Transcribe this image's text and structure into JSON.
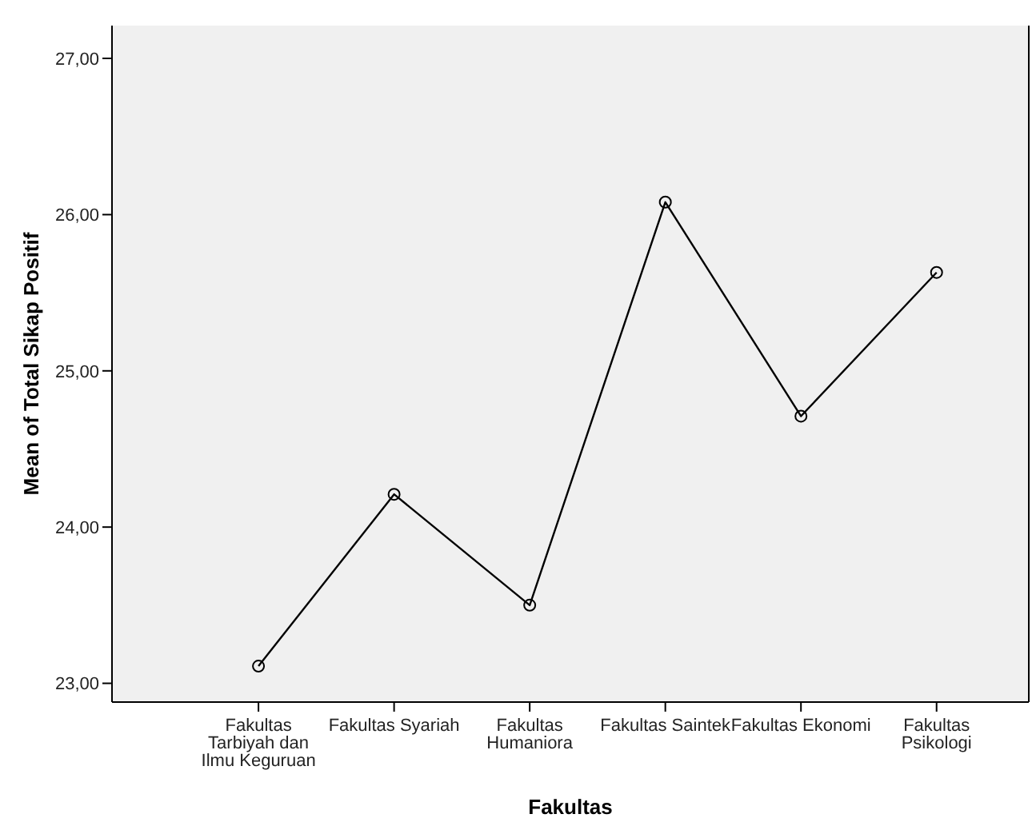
{
  "chart_data": {
    "type": "line",
    "xlabel": "Fakultas",
    "ylabel": "Mean of Total Sikap Positif",
    "categories": [
      "Fakultas Tarbiyah dan Ilmu Keguruan",
      "Fakultas Syariah",
      "Fakultas Humaniora",
      "Fakultas Saintek",
      "Fakultas Ekonomi",
      "Fakultas Psikologi"
    ],
    "series": [
      {
        "color": "#000000",
        "values": [
          23.11,
          24.21,
          23.5,
          26.08,
          24.71,
          25.63
        ]
      }
    ],
    "ylim": [
      22.88,
      27.21
    ],
    "yticks": [
      {
        "value": 23,
        "label": "23,00"
      },
      {
        "value": 24,
        "label": "24,00"
      },
      {
        "value": 25,
        "label": "25,00"
      },
      {
        "value": 26,
        "label": "26,00"
      },
      {
        "value": 27,
        "label": "27,00"
      }
    ],
    "grid": false,
    "legend": false,
    "marker": "circle",
    "line_style": "solid"
  }
}
